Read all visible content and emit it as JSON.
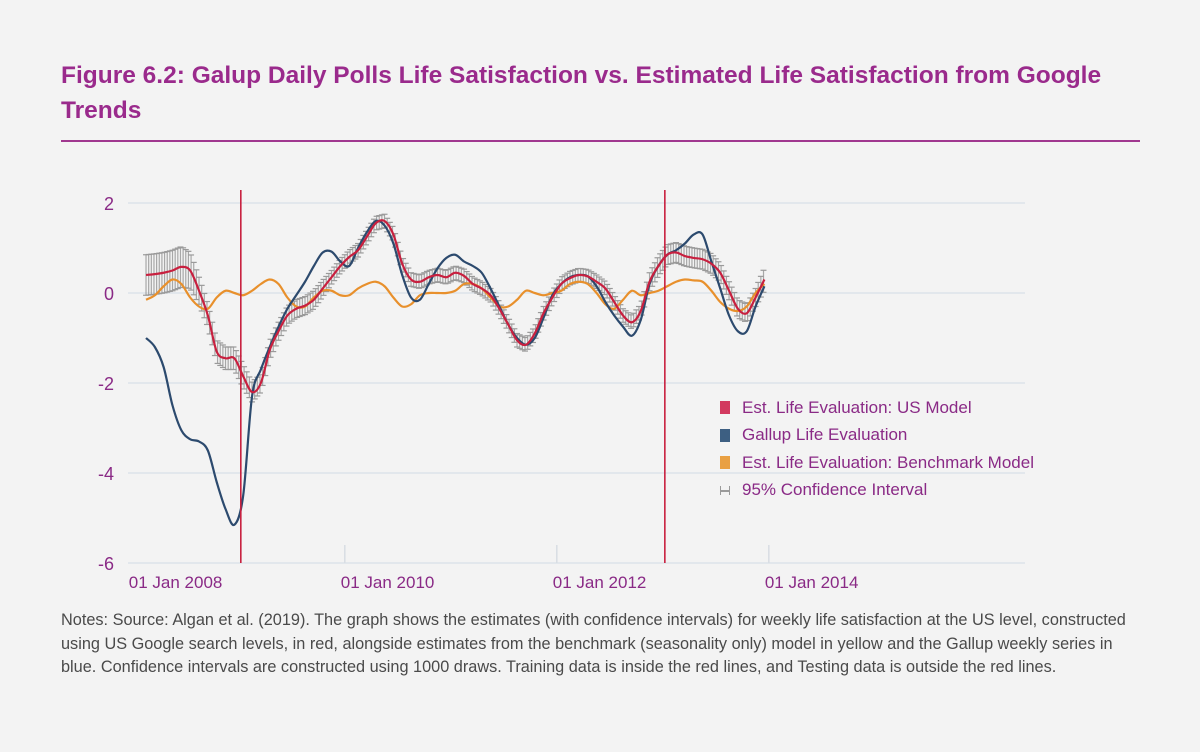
{
  "title": "Figure 6.2: Galup Daily Polls Life Satisfaction vs. Estimated Life Satisfaction from Google Trends",
  "notes": "Notes: Source: Algan et al. (2019). The graph shows the estimates (with confidence intervals) for weekly life satisfaction at the US level, constructed using US Google search levels, in red, alongside estimates from the benchmark (seasonality only) model in yellow and the Gallup weekly series in blue. Confidence intervals are constructed using 1000 draws. Training data is inside the red lines, and Testing data is outside the red lines.",
  "chart_data": {
    "type": "line",
    "title": "",
    "xlabel": "",
    "ylabel": "",
    "xlim": [
      "2007-12-15",
      "2016-06-01"
    ],
    "ylim": [
      -6,
      2
    ],
    "yticks": [
      2,
      0,
      -2,
      -4,
      -6
    ],
    "ytick_labels": [
      "2",
      "0",
      "-2",
      "-4",
      "-6"
    ],
    "xticks": [
      "2008-01-01",
      "2010-01-01",
      "2012-01-01",
      "2014-01-01"
    ],
    "xtick_labels": [
      "01 Jan 2008",
      "01 Jan 2010",
      "01 Jan 2012",
      "01 Jan 2014"
    ],
    "grid": "horizontal",
    "legend_position": "right",
    "vertical_lines": {
      "dates": [
        "2009-01-08",
        "2013-01-08"
      ],
      "color": "#c8203f"
    },
    "dates": [
      "2008-02",
      "2008-03",
      "2008-04",
      "2008-05",
      "2008-06",
      "2008-07",
      "2008-08",
      "2008-09",
      "2008-10",
      "2008-11",
      "2008-12",
      "2009-01",
      "2009-02",
      "2009-03",
      "2009-04",
      "2009-05",
      "2009-06",
      "2009-07",
      "2009-08",
      "2009-09",
      "2009-10",
      "2009-11",
      "2009-12",
      "2010-01",
      "2010-02",
      "2010-03",
      "2010-04",
      "2010-05",
      "2010-06",
      "2010-07",
      "2010-08",
      "2010-09",
      "2010-10",
      "2010-11",
      "2010-12",
      "2011-01",
      "2011-02",
      "2011-03",
      "2011-04",
      "2011-05",
      "2011-06",
      "2011-07",
      "2011-08",
      "2011-09",
      "2011-10",
      "2011-11",
      "2011-12",
      "2012-01",
      "2012-02",
      "2012-03",
      "2012-04",
      "2012-05",
      "2012-06",
      "2012-07",
      "2012-08",
      "2012-09",
      "2012-10",
      "2012-11",
      "2012-12",
      "2013-01",
      "2013-02",
      "2013-03",
      "2013-04",
      "2013-05",
      "2013-06",
      "2013-07",
      "2013-08",
      "2013-09",
      "2013-10",
      "2013-11",
      "2013-12"
    ],
    "series": [
      {
        "name": "Est. Life Evaluation: US Model",
        "color": "#c8203f",
        "values": [
          0.4,
          0.42,
          0.45,
          0.5,
          0.58,
          0.5,
          0.05,
          -0.5,
          -1.3,
          -1.45,
          -1.45,
          -1.85,
          -2.2,
          -2.0,
          -1.27,
          -0.85,
          -0.5,
          -0.35,
          -0.28,
          -0.15,
          0.1,
          0.35,
          0.6,
          0.8,
          0.95,
          1.25,
          1.55,
          1.6,
          1.3,
          0.65,
          0.3,
          0.25,
          0.35,
          0.4,
          0.35,
          0.45,
          0.38,
          0.2,
          0.1,
          -0.05,
          -0.35,
          -0.7,
          -1.05,
          -1.15,
          -0.9,
          -0.45,
          -0.1,
          0.2,
          0.33,
          0.4,
          0.37,
          0.25,
          0.1,
          -0.2,
          -0.5,
          -0.65,
          -0.4,
          0.25,
          0.6,
          0.85,
          0.9,
          0.82,
          0.78,
          0.75,
          0.65,
          0.45,
          0.05,
          -0.35,
          -0.45,
          -0.1,
          0.3
        ]
      },
      {
        "name": "Gallup Life Evaluation",
        "color": "#2c4a6e",
        "values": [
          -1.0,
          -1.2,
          -1.65,
          -2.5,
          -3.05,
          -3.25,
          -3.3,
          -3.5,
          -4.2,
          -4.8,
          -5.15,
          -4.5,
          -2.3,
          -1.7,
          -1.2,
          -0.75,
          -0.35,
          -0.05,
          0.25,
          0.6,
          0.9,
          0.92,
          0.7,
          0.6,
          1.0,
          1.35,
          1.6,
          1.5,
          1.1,
          0.4,
          -0.1,
          -0.15,
          0.2,
          0.55,
          0.78,
          0.85,
          0.7,
          0.6,
          0.45,
          0.1,
          -0.3,
          -0.7,
          -1.0,
          -1.15,
          -1.0,
          -0.55,
          -0.05,
          0.2,
          0.35,
          0.4,
          0.37,
          0.15,
          -0.2,
          -0.5,
          -0.75,
          -0.95,
          -0.6,
          0.2,
          0.6,
          0.85,
          0.95,
          1.1,
          1.3,
          1.3,
          0.7,
          0.1,
          -0.5,
          -0.85,
          -0.85,
          -0.3,
          0.15
        ]
      },
      {
        "name": "Est. Life Evaluation: Benchmark Model",
        "color": "#e8902c",
        "values": [
          -0.15,
          -0.05,
          0.15,
          0.3,
          0.2,
          -0.1,
          -0.3,
          -0.35,
          -0.1,
          0.05,
          0.0,
          -0.05,
          0.05,
          0.2,
          0.3,
          0.2,
          -0.1,
          -0.3,
          -0.3,
          -0.1,
          0.05,
          0.05,
          -0.05,
          -0.05,
          0.1,
          0.2,
          0.25,
          0.15,
          -0.1,
          -0.3,
          -0.25,
          -0.05,
          0.0,
          0.0,
          0.0,
          0.05,
          0.2,
          0.2,
          0.1,
          -0.1,
          -0.3,
          -0.3,
          -0.15,
          0.05,
          0.0,
          -0.05,
          0.0,
          0.05,
          0.2,
          0.25,
          0.2,
          0.0,
          -0.25,
          -0.35,
          -0.15,
          0.05,
          -0.05,
          0.0,
          0.05,
          0.15,
          0.25,
          0.3,
          0.28,
          0.25,
          0.05,
          -0.2,
          -0.35,
          -0.4,
          -0.3,
          0.0,
          0.2
        ]
      }
    ],
    "confidence_interval": {
      "name": "95% Confidence Interval",
      "color": "#9a9a9a",
      "of_series": "Est. Life Evaluation: US Model",
      "halfwidth": [
        0.45,
        0.45,
        0.45,
        0.45,
        0.45,
        0.4,
        0.3,
        0.25,
        0.25,
        0.25,
        0.25,
        0.25,
        0.22,
        0.2,
        0.2,
        0.2,
        0.2,
        0.2,
        0.2,
        0.2,
        0.18,
        0.15,
        0.15,
        0.15,
        0.15,
        0.15,
        0.15,
        0.15,
        0.15,
        0.15,
        0.15,
        0.15,
        0.15,
        0.15,
        0.15,
        0.15,
        0.15,
        0.15,
        0.15,
        0.15,
        0.15,
        0.15,
        0.15,
        0.15,
        0.15,
        0.15,
        0.15,
        0.15,
        0.15,
        0.15,
        0.15,
        0.15,
        0.15,
        0.15,
        0.15,
        0.15,
        0.15,
        0.2,
        0.22,
        0.22,
        0.22,
        0.22,
        0.22,
        0.22,
        0.22,
        0.2,
        0.2,
        0.2,
        0.2,
        0.2,
        0.25
      ]
    }
  }
}
